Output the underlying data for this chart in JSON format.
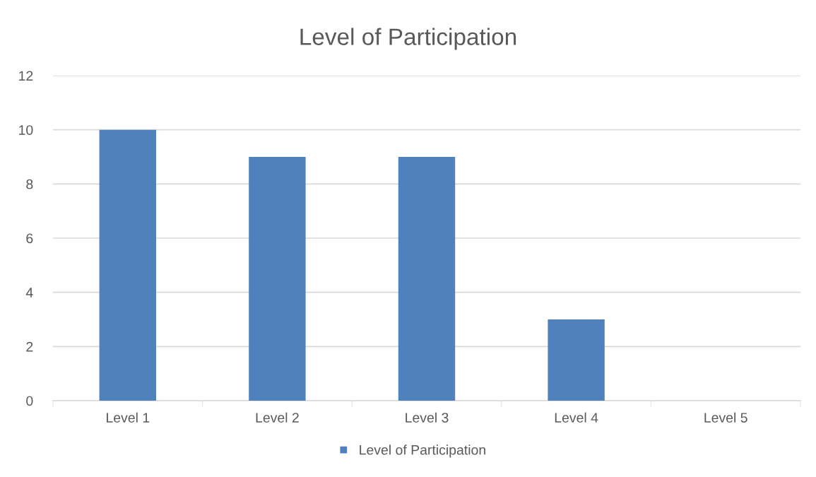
{
  "chart_data": {
    "type": "bar",
    "title": "Level of Participation",
    "categories": [
      "Level 1",
      "Level 2",
      "Level 3",
      "Level 4",
      "Level 5"
    ],
    "series": [
      {
        "name": "Level of Participation",
        "color": "#4f81bd",
        "values": [
          10,
          9,
          9,
          3,
          0
        ]
      }
    ],
    "ylim": [
      0,
      12
    ],
    "yticks": [
      0,
      2,
      4,
      6,
      8,
      10,
      12
    ],
    "grid": "y",
    "legend": "bottom"
  }
}
